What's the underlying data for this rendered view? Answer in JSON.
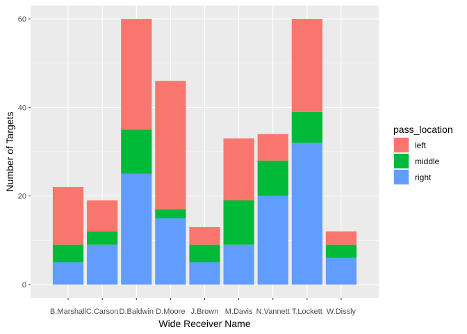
{
  "chart_data": {
    "type": "bar",
    "stacked": true,
    "title": "",
    "xlabel": "Wide Receiver Name",
    "ylabel": "Number of Targets",
    "categories": [
      "B.Marshall",
      "C.Carson",
      "D.Baldwin",
      "D.Moore",
      "J.Brown",
      "M.Davis",
      "N.Vannett",
      "T.Lockett",
      "W.Dissly"
    ],
    "series": [
      {
        "name": "right",
        "color": "#619CFF",
        "values": [
          5,
          9,
          25,
          15,
          5,
          9,
          20,
          32,
          6
        ]
      },
      {
        "name": "middle",
        "color": "#00BA38",
        "values": [
          4,
          3,
          10,
          2,
          4,
          10,
          8,
          7,
          3
        ]
      },
      {
        "name": "left",
        "color": "#F8766D",
        "values": [
          13,
          7,
          25,
          29,
          4,
          14,
          6,
          21,
          3
        ]
      }
    ],
    "ylim": [
      -3,
      63
    ],
    "yticks": [
      0,
      20,
      40,
      60
    ],
    "legend": {
      "title": "pass_location",
      "position": "right",
      "order": [
        "left",
        "middle",
        "right"
      ]
    },
    "panel_background": "#EBEBEB",
    "grid_color": "#FFFFFF"
  }
}
